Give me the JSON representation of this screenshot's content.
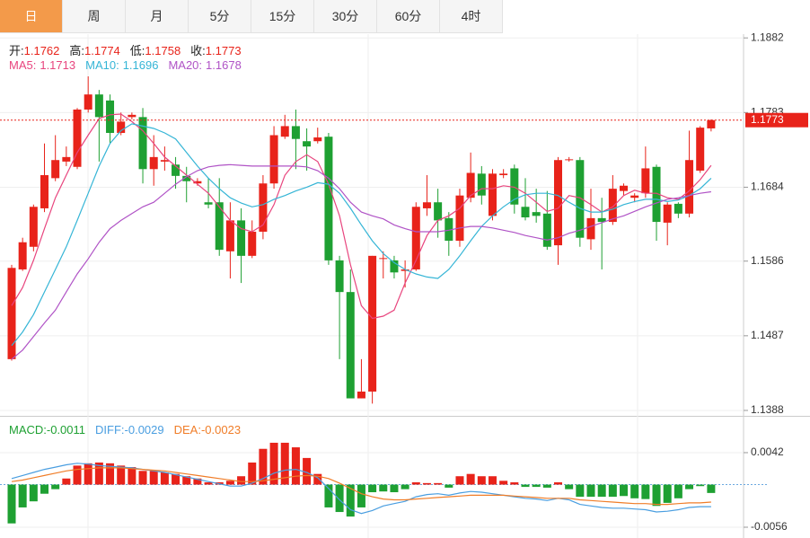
{
  "tabs": [
    "日",
    "周",
    "月",
    "5分",
    "15分",
    "30分",
    "60分",
    "4时"
  ],
  "active_tab": 0,
  "chart_data": [
    {
      "type": "candlestick",
      "ohlc_labels": [
        "开:",
        "高:",
        "低:",
        "收:"
      ],
      "up_color": "#e8231a",
      "down_color": "#1ea032",
      "ylim": [
        1.1382,
        1.1887
      ],
      "yticks": [
        1.1882,
        1.1783,
        1.1684,
        1.1586,
        1.1487,
        1.1388
      ],
      "grid": true,
      "open": [
        1.1456,
        1.1575,
        1.1605,
        1.1656,
        1.1696,
        1.1718,
        1.1711,
        1.1787,
        1.1807,
        1.1799,
        1.1756,
        1.1777,
        1.1777,
        1.1708,
        1.1718,
        1.1714,
        1.1699,
        1.1689,
        1.1664,
        1.1664,
        1.1599,
        1.164,
        1.1593,
        1.1625,
        1.1689,
        1.1751,
        1.1765,
        1.1745,
        1.1745,
        1.1751,
        1.1587,
        1.1545,
        1.1404,
        1.1413,
        1.1589,
        1.1587,
        1.1573,
        1.1575,
        1.1656,
        1.1664,
        1.1643,
        1.1613,
        1.167,
        1.1702,
        1.1646,
        1.17,
        1.1709,
        1.1658,
        1.1651,
        1.1649,
        1.1607,
        1.172,
        1.172,
        1.1615,
        1.1643,
        1.1638,
        1.1679,
        1.167,
        1.1676,
        1.1711,
        1.1637,
        1.1662,
        1.1649,
        1.1706,
        1.1762
      ],
      "high": [
        1.1581,
        1.1617,
        1.1661,
        1.1742,
        1.1753,
        1.1738,
        1.1789,
        1.1831,
        1.1813,
        1.1807,
        1.1783,
        1.1783,
        1.1789,
        1.1753,
        1.1738,
        1.1724,
        1.1711,
        1.1696,
        1.1696,
        1.1696,
        1.1664,
        1.1656,
        1.164,
        1.17,
        1.1765,
        1.178,
        1.1787,
        1.1762,
        1.1763,
        1.1756,
        1.1593,
        1.1575,
        1.1456,
        1.1593,
        1.1599,
        1.1593,
        1.1587,
        1.1664,
        1.17,
        1.1682,
        1.1651,
        1.1682,
        1.173,
        1.1712,
        1.1708,
        1.1708,
        1.1714,
        1.1696,
        1.1682,
        1.1679,
        1.1724,
        1.1724,
        1.1724,
        1.1682,
        1.167,
        1.17,
        1.1689,
        1.1676,
        1.1738,
        1.1714,
        1.1664,
        1.1664,
        1.1759,
        1.1765,
        1.1774
      ],
      "low": [
        1.1454,
        1.1573,
        1.1599,
        1.1651,
        1.1692,
        1.1712,
        1.1708,
        1.1783,
        1.1718,
        1.1742,
        1.1753,
        1.1774,
        1.1689,
        1.1686,
        1.1706,
        1.1682,
        1.1664,
        1.1686,
        1.1656,
        1.1593,
        1.1563,
        1.1557,
        1.159,
        1.1615,
        1.1682,
        1.1748,
        1.1708,
        1.1706,
        1.1742,
        1.1581,
        1.1456,
        1.1404,
        1.1404,
        1.1397,
        1.1563,
        1.1563,
        1.1551,
        1.1573,
        1.1646,
        1.1617,
        1.1593,
        1.1605,
        1.1664,
        1.1661,
        1.164,
        1.1696,
        1.1649,
        1.164,
        1.1637,
        1.1601,
        1.1581,
        1.1718,
        1.1605,
        1.1601,
        1.1575,
        1.1634,
        1.1673,
        1.1664,
        1.167,
        1.1613,
        1.1607,
        1.1643,
        1.1644,
        1.1703,
        1.1758
      ],
      "close": [
        1.1577,
        1.1611,
        1.1658,
        1.17,
        1.172,
        1.1724,
        1.1787,
        1.1807,
        1.1777,
        1.1756,
        1.1771,
        1.178,
        1.1708,
        1.1724,
        1.172,
        1.1699,
        1.1692,
        1.1692,
        1.1661,
        1.1601,
        1.164,
        1.1593,
        1.1625,
        1.1689,
        1.1753,
        1.1765,
        1.1748,
        1.1738,
        1.175,
        1.1587,
        1.1545,
        1.1404,
        1.1413,
        1.1593,
        1.159,
        1.1571,
        1.1575,
        1.1658,
        1.1664,
        1.164,
        1.1613,
        1.1673,
        1.1703,
        1.1673,
        1.1702,
        1.1702,
        1.1661,
        1.1644,
        1.1646,
        1.1605,
        1.172,
        1.1721,
        1.1617,
        1.1643,
        1.1638,
        1.1682,
        1.1686,
        1.1673,
        1.1709,
        1.1638,
        1.1661,
        1.1649,
        1.172,
        1.1763,
        1.1773
      ],
      "series": [
        {
          "name": "MA5:",
          "color": "#e8457e",
          "values": [
            1.1527,
            1.1551,
            1.1587,
            1.1629,
            1.167,
            1.17,
            1.173,
            1.1753,
            1.1775,
            1.178,
            1.1781,
            1.1771,
            1.1759,
            1.1742,
            1.1724,
            1.1712,
            1.17,
            1.1688,
            1.1676,
            1.1658,
            1.164,
            1.1629,
            1.1625,
            1.1634,
            1.1661,
            1.17,
            1.1718,
            1.1727,
            1.1718,
            1.1688,
            1.1646,
            1.1581,
            1.1527,
            1.151,
            1.1513,
            1.1521,
            1.1557,
            1.1587,
            1.162,
            1.164,
            1.1646,
            1.1656,
            1.1673,
            1.1682,
            1.1682,
            1.1686,
            1.1684,
            1.1676,
            1.1664,
            1.1652,
            1.1656,
            1.1673,
            1.167,
            1.1661,
            1.1651,
            1.1658,
            1.1673,
            1.168,
            1.1676,
            1.1676,
            1.167,
            1.1668,
            1.1679,
            1.1694,
            1.1713
          ]
        },
        {
          "name": "MA10:",
          "color": "#35b5d6",
          "values": [
            1.1474,
            1.1492,
            1.1515,
            1.1545,
            1.1575,
            1.1605,
            1.164,
            1.1676,
            1.1712,
            1.1742,
            1.1759,
            1.1768,
            1.1765,
            1.1762,
            1.1756,
            1.1748,
            1.173,
            1.1712,
            1.1696,
            1.1682,
            1.167,
            1.1663,
            1.1658,
            1.1661,
            1.1668,
            1.1673,
            1.1679,
            1.1684,
            1.169,
            1.1688,
            1.1676,
            1.1656,
            1.1634,
            1.1613,
            1.1596,
            1.1584,
            1.1575,
            1.1569,
            1.1565,
            1.1563,
            1.1575,
            1.1593,
            1.1613,
            1.1632,
            1.1646,
            1.1658,
            1.1668,
            1.1674,
            1.1676,
            1.1676,
            1.1673,
            1.1664,
            1.1656,
            1.1651,
            1.1651,
            1.1655,
            1.1661,
            1.1665,
            1.1668,
            1.1668,
            1.1665,
            1.1667,
            1.1673,
            1.1682,
            1.1696
          ]
        },
        {
          "name": "MA20:",
          "color": "#b053c6",
          "values": [
            1.1456,
            1.1468,
            1.1486,
            1.1504,
            1.1521,
            1.1545,
            1.1569,
            1.1589,
            1.1611,
            1.1629,
            1.164,
            1.1649,
            1.1658,
            1.1664,
            1.1676,
            1.1688,
            1.1698,
            1.1706,
            1.1711,
            1.1713,
            1.1714,
            1.1713,
            1.1712,
            1.1712,
            1.1712,
            1.1712,
            1.1712,
            1.1711,
            1.1706,
            1.1696,
            1.1682,
            1.1664,
            1.1651,
            1.1646,
            1.1642,
            1.1634,
            1.1629,
            1.1625,
            1.1625,
            1.1625,
            1.1627,
            1.163,
            1.1632,
            1.1632,
            1.163,
            1.1627,
            1.1624,
            1.162,
            1.1617,
            1.1614,
            1.1617,
            1.1623,
            1.1627,
            1.1632,
            1.1637,
            1.1642,
            1.1646,
            1.1652,
            1.1658,
            1.1663,
            1.1668,
            1.167,
            1.1673,
            1.1676,
            1.1678
          ]
        }
      ]
    },
    {
      "type": "macd",
      "ylim": [
        -0.0069,
        0.0088
      ],
      "yticks": [
        0.0042,
        -0.0056
      ],
      "histogram": {
        "name": "MACD:",
        "up_color": "#e8231a",
        "down_color": "#1ea032",
        "values": [
          -0.0051,
          -0.003,
          -0.0022,
          -0.0012,
          -0.0006,
          0.0008,
          0.0025,
          0.0028,
          0.0029,
          0.0028,
          0.0025,
          0.0023,
          0.0018,
          0.0018,
          0.0016,
          0.0014,
          0.0011,
          0.0008,
          0.0003,
          0.0003,
          0.0005,
          0.0011,
          0.0029,
          0.0047,
          0.0055,
          0.0055,
          0.0049,
          0.0035,
          0.0014,
          -0.003,
          -0.0036,
          -0.0042,
          -0.003,
          -0.001,
          -0.0009,
          -0.001,
          -0.0006,
          0.0003,
          0.0002,
          0.0002,
          -0.0004,
          0.0011,
          0.0014,
          0.0011,
          0.0011,
          0.0005,
          0.0003,
          -0.0003,
          -0.0003,
          -0.0004,
          0.0003,
          -0.0006,
          -0.0016,
          -0.0016,
          -0.0016,
          -0.0016,
          -0.0015,
          -0.0018,
          -0.0019,
          -0.0028,
          -0.0024,
          -0.0018,
          -0.0006,
          -0.0002,
          -0.0011
        ]
      },
      "series": [
        {
          "name": "DIFF:",
          "color": "#4a9ee0",
          "values": [
            0.0008,
            0.0012,
            0.0016,
            0.002,
            0.0023,
            0.0026,
            0.0028,
            0.0027,
            0.0025,
            0.0024,
            0.0023,
            0.0022,
            0.002,
            0.0018,
            0.0016,
            0.0013,
            0.001,
            0.0007,
            0.0004,
            0.0001,
            -0.0002,
            -0.0002,
            0.0002,
            0.0008,
            0.0015,
            0.0019,
            0.002,
            0.0016,
            0.0009,
            -0.0005,
            -0.002,
            -0.0033,
            -0.0038,
            -0.0034,
            -0.0028,
            -0.0025,
            -0.0022,
            -0.0016,
            -0.0013,
            -0.0012,
            -0.0014,
            -0.0011,
            -0.0009,
            -0.001,
            -0.0012,
            -0.0014,
            -0.0016,
            -0.0018,
            -0.0019,
            -0.0021,
            -0.0018,
            -0.002,
            -0.0026,
            -0.0028,
            -0.003,
            -0.0031,
            -0.0031,
            -0.0032,
            -0.0033,
            -0.0036,
            -0.0035,
            -0.0033,
            -0.003,
            -0.0029,
            -0.0029
          ]
        },
        {
          "name": "DEA:",
          "color": "#f07d28",
          "values": [
            0.0004,
            0.0006,
            0.0009,
            0.0012,
            0.0015,
            0.0018,
            0.002,
            0.0021,
            0.0022,
            0.0022,
            0.0022,
            0.0021,
            0.002,
            0.0019,
            0.0018,
            0.0016,
            0.0014,
            0.0012,
            0.001,
            0.0008,
            0.0006,
            0.0004,
            0.0004,
            0.0005,
            0.0007,
            0.0009,
            0.0011,
            0.0012,
            0.0011,
            0.0008,
            0.0002,
            -0.0005,
            -0.0012,
            -0.0016,
            -0.0019,
            -0.002,
            -0.002,
            -0.0019,
            -0.0018,
            -0.0017,
            -0.0016,
            -0.0015,
            -0.0014,
            -0.0014,
            -0.0014,
            -0.0014,
            -0.0015,
            -0.0016,
            -0.0017,
            -0.0018,
            -0.0018,
            -0.0018,
            -0.002,
            -0.0021,
            -0.0022,
            -0.0023,
            -0.0024,
            -0.0025,
            -0.0025,
            -0.0026,
            -0.0026,
            -0.0025,
            -0.0024,
            -0.0024,
            -0.0023
          ]
        }
      ]
    }
  ]
}
